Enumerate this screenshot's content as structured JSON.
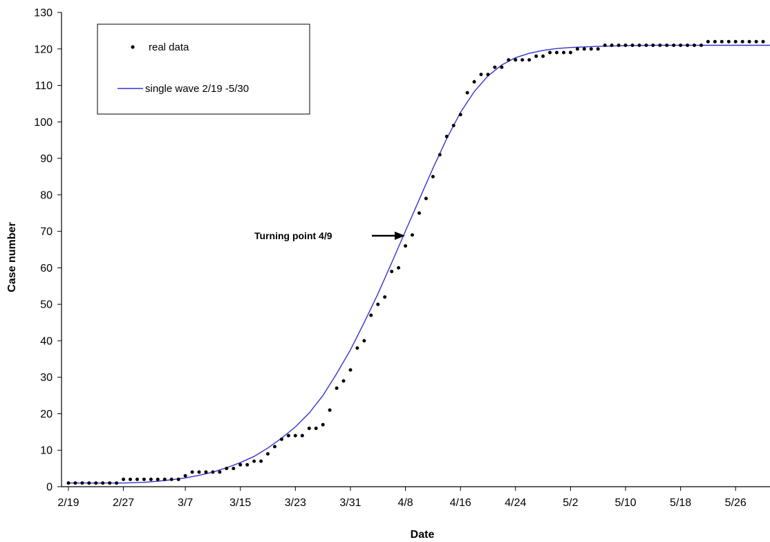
{
  "chart_data": {
    "type": "scatter",
    "xlabel": "Date",
    "ylabel": "Case number",
    "ylim": [
      0,
      130
    ],
    "yticks": [
      0,
      10,
      20,
      30,
      40,
      50,
      60,
      70,
      80,
      90,
      100,
      110,
      120,
      130
    ],
    "xtick_labels": [
      "2/19",
      "2/27",
      "3/7",
      "3/15",
      "3/23",
      "3/31",
      "4/8",
      "4/16",
      "4/24",
      "5/2",
      "5/10",
      "5/18",
      "5/26"
    ],
    "xtick_dates": [
      "2020-02-19",
      "2020-02-27",
      "2020-03-07",
      "2020-03-15",
      "2020-03-23",
      "2020-03-31",
      "2020-04-08",
      "2020-04-16",
      "2020-04-24",
      "2020-05-02",
      "2020-05-10",
      "2020-05-18",
      "2020-05-26"
    ],
    "xlim": [
      "2020-02-18",
      "2020-05-31"
    ],
    "grid": false,
    "legend_position": "top-left",
    "series": [
      {
        "name": "real data",
        "kind": "scatter",
        "color": "#000000",
        "x": [
          "2020-02-19",
          "2020-02-20",
          "2020-02-21",
          "2020-02-22",
          "2020-02-23",
          "2020-02-24",
          "2020-02-25",
          "2020-02-26",
          "2020-02-27",
          "2020-02-28",
          "2020-02-29",
          "2020-03-01",
          "2020-03-02",
          "2020-03-03",
          "2020-03-04",
          "2020-03-05",
          "2020-03-06",
          "2020-03-07",
          "2020-03-08",
          "2020-03-09",
          "2020-03-10",
          "2020-03-11",
          "2020-03-12",
          "2020-03-13",
          "2020-03-14",
          "2020-03-15",
          "2020-03-16",
          "2020-03-17",
          "2020-03-18",
          "2020-03-19",
          "2020-03-20",
          "2020-03-21",
          "2020-03-22",
          "2020-03-23",
          "2020-03-24",
          "2020-03-25",
          "2020-03-26",
          "2020-03-27",
          "2020-03-28",
          "2020-03-29",
          "2020-03-30",
          "2020-03-31",
          "2020-04-01",
          "2020-04-02",
          "2020-04-03",
          "2020-04-04",
          "2020-04-05",
          "2020-04-06",
          "2020-04-07",
          "2020-04-08",
          "2020-04-09",
          "2020-04-10",
          "2020-04-11",
          "2020-04-12",
          "2020-04-13",
          "2020-04-14",
          "2020-04-15",
          "2020-04-16",
          "2020-04-17",
          "2020-04-18",
          "2020-04-19",
          "2020-04-20",
          "2020-04-21",
          "2020-04-22",
          "2020-04-23",
          "2020-04-24",
          "2020-04-25",
          "2020-04-26",
          "2020-04-27",
          "2020-04-28",
          "2020-04-29",
          "2020-04-30",
          "2020-05-01",
          "2020-05-02",
          "2020-05-03",
          "2020-05-04",
          "2020-05-05",
          "2020-05-06",
          "2020-05-07",
          "2020-05-08",
          "2020-05-09",
          "2020-05-10",
          "2020-05-11",
          "2020-05-12",
          "2020-05-13",
          "2020-05-14",
          "2020-05-15",
          "2020-05-16",
          "2020-05-17",
          "2020-05-18",
          "2020-05-19",
          "2020-05-20",
          "2020-05-21",
          "2020-05-22",
          "2020-05-23",
          "2020-05-24",
          "2020-05-25",
          "2020-05-26",
          "2020-05-27",
          "2020-05-28",
          "2020-05-29",
          "2020-05-30",
          "2020-05-31"
        ],
        "y": [
          1,
          1,
          1,
          1,
          1,
          1,
          1,
          1,
          2,
          2,
          2,
          2,
          2,
          2,
          2,
          2,
          2,
          3,
          4,
          4,
          4,
          4,
          4,
          5,
          5,
          6,
          6,
          7,
          7,
          9,
          11,
          13,
          14,
          14,
          14,
          16,
          16,
          17,
          21,
          27,
          29,
          32,
          38,
          40,
          47,
          50,
          52,
          59,
          60,
          66,
          69,
          75,
          79,
          85,
          91,
          96,
          99,
          102,
          108,
          111,
          113,
          113,
          115,
          115,
          117,
          117,
          117,
          117,
          118,
          118,
          119,
          119,
          119,
          119,
          120,
          120,
          120,
          120,
          121,
          121,
          121,
          121,
          121,
          121,
          121,
          121,
          121,
          121,
          121,
          121,
          121,
          121,
          121,
          122,
          122,
          122,
          122,
          122,
          122,
          122,
          122,
          122,
          122
        ]
      },
      {
        "name": "single wave 2/19 -5/30",
        "kind": "line",
        "color": "#3333cc",
        "x": [
          "2020-02-19",
          "2020-02-21",
          "2020-02-23",
          "2020-02-25",
          "2020-02-27",
          "2020-03-01",
          "2020-03-03",
          "2020-03-05",
          "2020-03-07",
          "2020-03-09",
          "2020-03-11",
          "2020-03-13",
          "2020-03-15",
          "2020-03-17",
          "2020-03-19",
          "2020-03-21",
          "2020-03-23",
          "2020-03-25",
          "2020-03-27",
          "2020-03-29",
          "2020-03-31",
          "2020-04-02",
          "2020-04-04",
          "2020-04-06",
          "2020-04-08",
          "2020-04-10",
          "2020-04-12",
          "2020-04-14",
          "2020-04-16",
          "2020-04-18",
          "2020-04-20",
          "2020-04-22",
          "2020-04-24",
          "2020-04-26",
          "2020-04-28",
          "2020-04-30",
          "2020-05-02",
          "2020-05-06",
          "2020-05-10",
          "2020-05-14",
          "2020-05-18",
          "2020-05-22",
          "2020-05-26",
          "2020-05-31"
        ],
        "y": [
          1,
          1,
          1,
          1,
          1,
          1.2,
          1.5,
          1.9,
          2.4,
          3.1,
          4,
          5.2,
          6.6,
          8.3,
          10.6,
          13.3,
          16.4,
          20.2,
          25,
          31,
          37.5,
          45,
          52.9,
          61.4,
          70.1,
          78.7,
          87.3,
          95.4,
          102.6,
          108.3,
          112.6,
          115.6,
          117.6,
          118.8,
          119.6,
          120.1,
          120.4,
          120.7,
          120.9,
          121,
          121,
          121,
          121,
          121
        ]
      }
    ],
    "legend": {
      "entries": [
        "real data",
        "single wave 2/19 -5/30"
      ]
    },
    "annotations": [
      {
        "text": "Turning point 4/9",
        "date": "2020-04-09",
        "value": 69
      }
    ]
  }
}
